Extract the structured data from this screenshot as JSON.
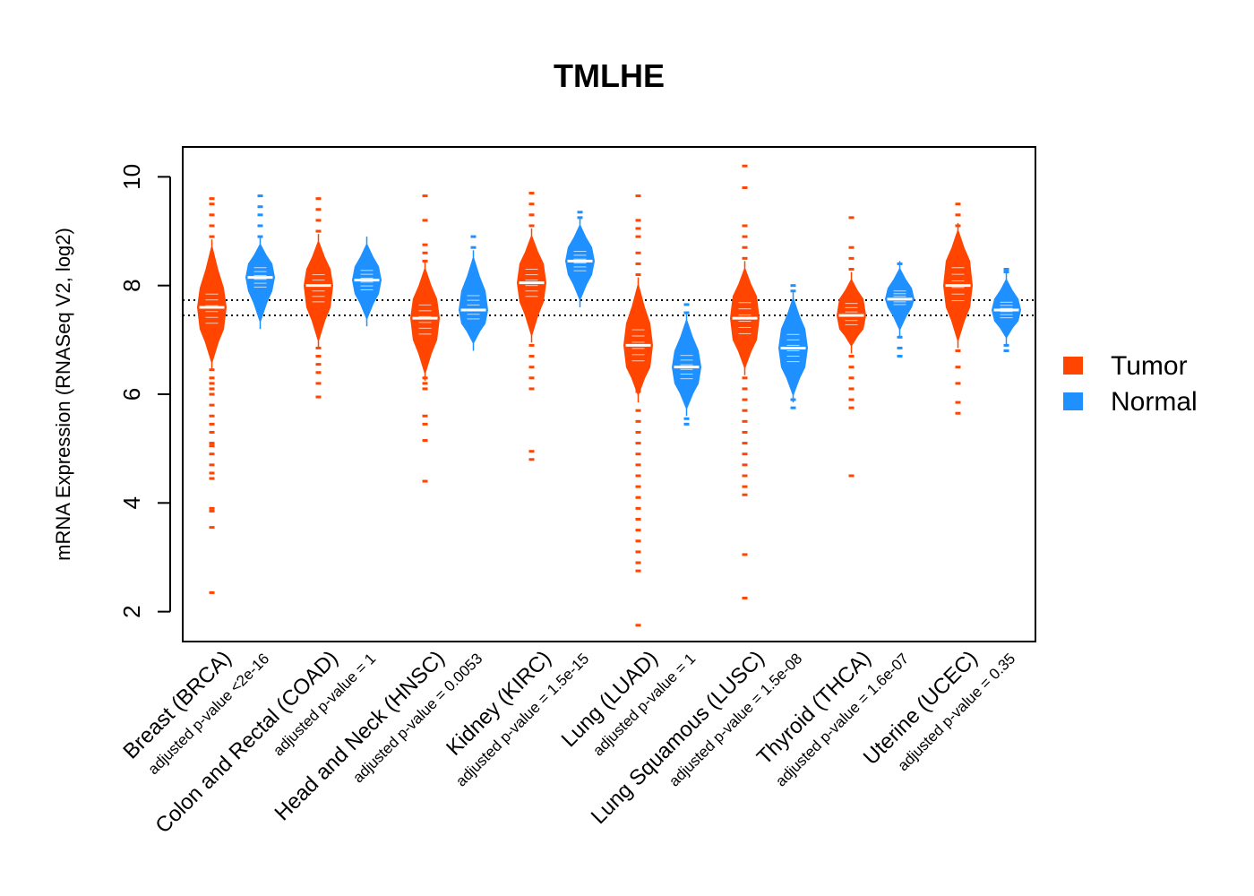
{
  "chart_data": {
    "type": "violin",
    "title": "TMLHE",
    "ylabel": "mRNA Expression (RNASeq V2, log2)",
    "ylim": [
      1.45,
      10.55
    ],
    "yticks": [
      2,
      4,
      6,
      8,
      10
    ],
    "reference_lines": [
      7.45,
      7.73
    ],
    "legend": {
      "position": "right",
      "items": [
        {
          "label": "Tumor",
          "color": "#FF4500"
        },
        {
          "label": "Normal",
          "color": "#1E90FF"
        }
      ]
    },
    "groups": [
      {
        "name": "Breast (BRCA)",
        "pvalue": "adjusted p-value <2e-16",
        "tumor": {
          "median": 7.6,
          "q1": 7.2,
          "q3": 7.95,
          "min": 6.6,
          "max": 8.7,
          "outliers": [
            2.35,
            3.55,
            3.85,
            3.9,
            4.45,
            4.55,
            4.7,
            4.9,
            5.05,
            5.1,
            5.3,
            5.45,
            5.6,
            5.8,
            6.0,
            6.1,
            6.2,
            6.3,
            6.45,
            8.9,
            9.1,
            9.3,
            9.5,
            9.6
          ]
        },
        "normal": {
          "median": 8.15,
          "q1": 7.9,
          "q3": 8.4,
          "min": 7.35,
          "max": 8.75,
          "outliers": [
            8.9,
            9.1,
            9.3,
            9.45,
            9.65
          ]
        }
      },
      {
        "name": "Colon and Rectal (COAD)",
        "pvalue": "adjusted p-value = 1",
        "tumor": {
          "median": 8.0,
          "q1": 7.6,
          "q3": 8.3,
          "min": 7.0,
          "max": 8.8,
          "outliers": [
            5.95,
            6.2,
            6.4,
            6.55,
            6.7,
            6.85,
            9.0,
            9.2,
            9.4,
            9.6
          ]
        },
        "normal": {
          "median": 8.1,
          "q1": 7.85,
          "q3": 8.35,
          "min": 7.4,
          "max": 8.75,
          "outliers": []
        }
      },
      {
        "name": "Head and Neck (HNSC)",
        "pvalue": "adjusted p-value = 0.0053",
        "tumor": {
          "median": 7.4,
          "q1": 7.0,
          "q3": 7.75,
          "min": 6.4,
          "max": 8.3,
          "outliers": [
            4.4,
            5.15,
            5.45,
            5.6,
            6.1,
            6.2,
            6.3,
            8.45,
            8.6,
            8.75,
            9.2,
            9.65
          ]
        },
        "normal": {
          "median": 7.55,
          "q1": 7.3,
          "q3": 7.9,
          "min": 6.95,
          "max": 8.5,
          "outliers": [
            8.7,
            8.9
          ]
        }
      },
      {
        "name": "Kidney (KIRC)",
        "pvalue": "adjusted p-value = 1.5e-15",
        "tumor": {
          "median": 8.05,
          "q1": 7.7,
          "q3": 8.4,
          "min": 7.1,
          "max": 8.9,
          "outliers": [
            4.8,
            4.95,
            6.1,
            6.3,
            6.5,
            6.7,
            6.9,
            9.1,
            9.3,
            9.5,
            9.7
          ]
        },
        "normal": {
          "median": 8.45,
          "q1": 8.2,
          "q3": 8.7,
          "min": 7.75,
          "max": 9.1,
          "outliers": [
            9.25,
            9.35
          ]
        }
      },
      {
        "name": "Lung (LUAD)",
        "pvalue": "adjusted p-value = 1",
        "tumor": {
          "median": 6.9,
          "q1": 6.5,
          "q3": 7.3,
          "min": 6.0,
          "max": 8.0,
          "outliers": [
            1.75,
            2.75,
            2.9,
            3.1,
            3.3,
            3.5,
            3.7,
            3.9,
            4.1,
            4.3,
            4.5,
            4.7,
            4.9,
            5.1,
            5.3,
            5.5,
            5.7,
            6.05,
            6.1,
            8.2,
            8.4,
            8.6,
            8.9,
            9.05,
            9.2,
            9.65
          ]
        },
        "normal": {
          "median": 6.5,
          "q1": 6.2,
          "q3": 6.8,
          "min": 5.75,
          "max": 7.35,
          "outliers": [
            5.45,
            5.55,
            7.5,
            7.65
          ]
        }
      },
      {
        "name": "Lung Squamous (LUSC)",
        "pvalue": "adjusted p-value = 1.5e-08",
        "tumor": {
          "median": 7.4,
          "q1": 7.0,
          "q3": 7.8,
          "min": 6.5,
          "max": 8.3,
          "outliers": [
            2.25,
            3.05,
            4.15,
            4.3,
            4.5,
            4.7,
            4.9,
            5.1,
            5.3,
            5.5,
            5.7,
            5.9,
            6.1,
            6.3,
            8.5,
            8.7,
            8.9,
            9.1,
            9.8,
            10.2
          ]
        },
        "normal": {
          "median": 6.85,
          "q1": 6.5,
          "q3": 7.2,
          "min": 6.0,
          "max": 7.75,
          "outliers": [
            5.75,
            5.9,
            7.9,
            8.0
          ]
        }
      },
      {
        "name": "Thyroid (THCA)",
        "pvalue": "adjusted p-value = 1.6e-07",
        "tumor": {
          "median": 7.45,
          "q1": 7.2,
          "q3": 7.75,
          "min": 6.9,
          "max": 8.1,
          "outliers": [
            4.5,
            5.75,
            5.9,
            6.1,
            6.3,
            6.5,
            6.7,
            8.3,
            8.5,
            8.7,
            9.25
          ]
        },
        "normal": {
          "median": 7.75,
          "q1": 7.6,
          "q3": 7.95,
          "min": 7.2,
          "max": 8.3,
          "outliers": [
            6.7,
            6.85,
            7.05,
            8.4
          ]
        }
      },
      {
        "name": "Uterine (UCEC)",
        "pvalue": "adjusted p-value = 0.35",
        "tumor": {
          "median": 8.0,
          "q1": 7.6,
          "q3": 8.45,
          "min": 7.0,
          "max": 9.0,
          "outliers": [
            5.65,
            5.85,
            6.2,
            6.5,
            6.8,
            9.1,
            9.3,
            9.5
          ]
        },
        "normal": {
          "median": 7.55,
          "q1": 7.35,
          "q3": 7.75,
          "min": 7.05,
          "max": 8.1,
          "outliers": [
            6.8,
            6.9,
            8.25,
            8.3
          ]
        }
      }
    ]
  }
}
